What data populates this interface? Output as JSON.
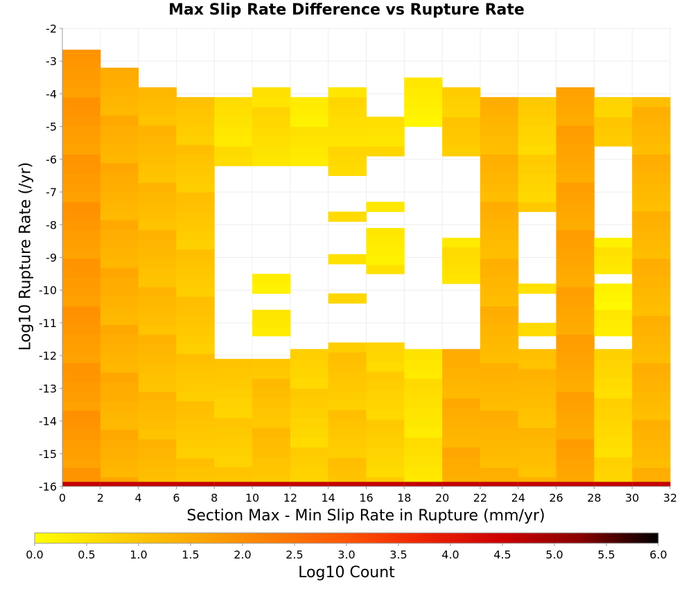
{
  "chart_data": {
    "type": "heatmap",
    "title": "Max Slip Rate Difference vs Rupture Rate",
    "xlabel": "Section Max - Min Slip Rate in Rupture (mm/yr)",
    "ylabel": "Log10 Rupture Rate (/yr)",
    "xlim": [
      0,
      32
    ],
    "ylim": [
      -16,
      -2
    ],
    "x_bin_width": 2,
    "y_bin_width": 0.29,
    "x_ticks": [
      "0",
      "2",
      "4",
      "6",
      "8",
      "10",
      "12",
      "14",
      "16",
      "18",
      "20",
      "22",
      "24",
      "26",
      "28",
      "30",
      "32"
    ],
    "y_ticks": [
      "-2",
      "-3",
      "-4",
      "-5",
      "-6",
      "-7",
      "-8",
      "-9",
      "-10",
      "-11",
      "-12",
      "-13",
      "-14",
      "-15",
      "-16"
    ],
    "colorbar": {
      "label": "Log10 Count",
      "range": [
        0.0,
        6.0
      ],
      "ticks": [
        "0.0",
        "0.5",
        "1.0",
        "1.5",
        "2.0",
        "2.5",
        "3.0",
        "3.5",
        "4.0",
        "4.5",
        "5.0",
        "5.5",
        "6.0"
      ],
      "colormap": [
        "#ffff00",
        "#ffd400",
        "#ffaa00",
        "#ff8000",
        "#ff5500",
        "#ee2200",
        "#cc0000",
        "#880000",
        "#000000"
      ]
    },
    "grid": true,
    "columns": [
      {
        "x": 1,
        "cells": [
          {
            "from": -16,
            "to": -2.65,
            "value": 1.8
          },
          {
            "from": -16,
            "to": -16,
            "value": 4.6
          }
        ]
      },
      {
        "x": 3,
        "cells": [
          {
            "from": -16,
            "to": -3.2,
            "value": 1.4
          }
        ]
      },
      {
        "x": 5,
        "cells": [
          {
            "from": -16,
            "to": -3.8,
            "value": 1.2
          }
        ]
      },
      {
        "x": 7,
        "cells": [
          {
            "from": -16,
            "to": -4.1,
            "value": 1.0
          }
        ]
      },
      {
        "x": 9,
        "cells": [
          {
            "from": -16,
            "to": -12.1,
            "value": 0.9
          },
          {
            "from": -6.2,
            "to": -4.1,
            "value": 0.5
          }
        ]
      },
      {
        "x": 11,
        "cells": [
          {
            "from": -16,
            "to": -12.1,
            "value": 1.1
          },
          {
            "from": -11.4,
            "to": -10.6,
            "value": 0.5
          },
          {
            "from": -10.1,
            "to": -9.5,
            "value": 0.4
          },
          {
            "from": -6.2,
            "to": -3.8,
            "value": 0.6
          }
        ]
      },
      {
        "x": 13,
        "cells": [
          {
            "from": -16,
            "to": -11.8,
            "value": 0.8
          },
          {
            "from": -6.2,
            "to": -4.1,
            "value": 0.4
          }
        ]
      },
      {
        "x": 15,
        "cells": [
          {
            "from": -16,
            "to": -11.6,
            "value": 1.0
          },
          {
            "from": -10.4,
            "to": -10.1,
            "value": 0.7
          },
          {
            "from": -9.2,
            "to": -8.9,
            "value": 0.5
          },
          {
            "from": -7.9,
            "to": -7.6,
            "value": 0.6
          },
          {
            "from": -6.5,
            "to": -3.8,
            "value": 0.6
          }
        ]
      },
      {
        "x": 17,
        "cells": [
          {
            "from": -16,
            "to": -11.6,
            "value": 0.8
          },
          {
            "from": -9.5,
            "to": -8.1,
            "value": 0.4
          },
          {
            "from": -7.6,
            "to": -7.3,
            "value": 0.3
          },
          {
            "from": -5.9,
            "to": -4.7,
            "value": 0.6
          }
        ]
      },
      {
        "x": 19,
        "cells": [
          {
            "from": -16,
            "to": -11.8,
            "value": 0.5
          },
          {
            "from": -5.0,
            "to": -3.5,
            "value": 0.3
          }
        ]
      },
      {
        "x": 21,
        "cells": [
          {
            "from": -16,
            "to": -11.8,
            "value": 1.4
          },
          {
            "from": -9.8,
            "to": -8.4,
            "value": 0.5
          },
          {
            "from": -5.9,
            "to": -3.8,
            "value": 0.9
          }
        ]
      },
      {
        "x": 23,
        "cells": [
          {
            "from": -16,
            "to": -4.1,
            "value": 1.3
          }
        ]
      },
      {
        "x": 25,
        "cells": [
          {
            "from": -16,
            "to": -11.8,
            "value": 1.2
          },
          {
            "from": -11.4,
            "to": -11.0,
            "value": 0.5
          },
          {
            "from": -10.1,
            "to": -9.8,
            "value": 0.4
          },
          {
            "from": -7.6,
            "to": -4.1,
            "value": 0.8
          }
        ]
      },
      {
        "x": 27,
        "cells": [
          {
            "from": -16,
            "to": -3.8,
            "value": 1.6
          }
        ]
      },
      {
        "x": 29,
        "cells": [
          {
            "from": -16,
            "to": -11.8,
            "value": 0.7
          },
          {
            "from": -11.4,
            "to": -9.8,
            "value": 0.3
          },
          {
            "from": -9.5,
            "to": -8.4,
            "value": 0.4
          },
          {
            "from": -5.6,
            "to": -4.1,
            "value": 0.9
          }
        ]
      },
      {
        "x": 31,
        "cells": [
          {
            "from": -16,
            "to": -4.1,
            "value": 1.3
          }
        ]
      }
    ]
  }
}
